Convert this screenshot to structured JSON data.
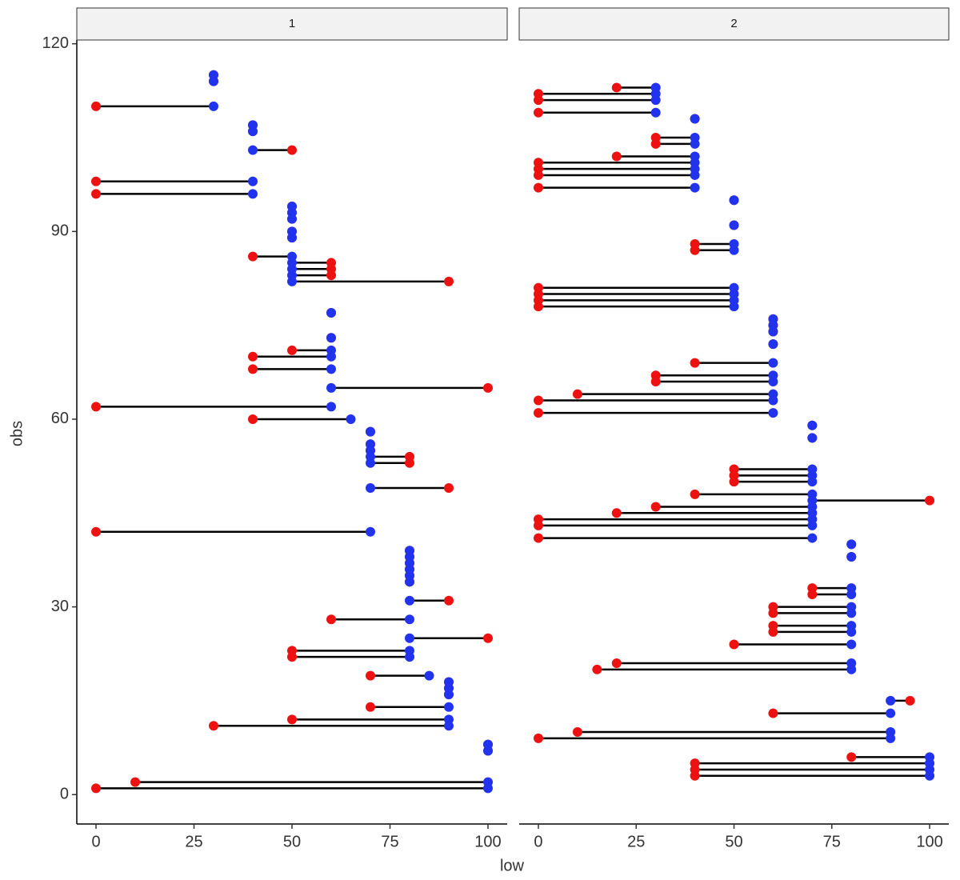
{
  "chart_data": {
    "type": "dumbbell",
    "x_label": "low",
    "y_label": "obs",
    "xlim": [
      -4.9,
      104.9
    ],
    "xticks": [
      0,
      25,
      50,
      75,
      100
    ],
    "ylim": [
      -4.7,
      120.6
    ],
    "yticks": [
      0,
      30,
      60,
      90,
      120
    ],
    "start_color": "#ee1111",
    "end_color": "#2233ee",
    "segment_color": "#000000",
    "facets": [
      {
        "title": "1",
        "y": [
          115,
          114,
          110,
          107,
          106,
          103,
          98,
          96,
          94,
          93,
          92,
          90,
          89,
          86,
          85,
          84,
          83,
          82,
          77,
          73,
          71,
          70,
          68,
          65,
          62,
          60,
          58,
          56,
          55,
          54,
          53,
          49,
          42,
          39,
          38,
          37,
          36,
          35,
          34,
          31,
          28,
          25,
          23,
          22,
          19,
          18,
          17,
          16,
          14,
          12,
          11,
          8,
          7,
          2,
          1
        ],
        "x_start": [
          30,
          30,
          0,
          40,
          40,
          50,
          0,
          0,
          50,
          50,
          50,
          50,
          50,
          40,
          60,
          60,
          60,
          90,
          60,
          60,
          50,
          40,
          40,
          100,
          0,
          40,
          70,
          70,
          70,
          80,
          80,
          90,
          0,
          80,
          80,
          80,
          80,
          80,
          80,
          90,
          60,
          100,
          50,
          50,
          70,
          90,
          90,
          90,
          70,
          50,
          30,
          100,
          100,
          10,
          0
        ],
        "x_end": [
          30,
          30,
          30,
          40,
          40,
          40,
          40,
          40,
          50,
          50,
          50,
          50,
          50,
          50,
          50,
          50,
          50,
          50,
          60,
          60,
          60,
          60,
          60,
          60,
          60,
          65,
          70,
          70,
          70,
          70,
          70,
          70,
          70,
          80,
          80,
          80,
          80,
          80,
          80,
          80,
          80,
          80,
          80,
          80,
          85,
          90,
          90,
          90,
          90,
          90,
          90,
          100,
          100,
          100,
          100
        ]
      },
      {
        "title": "2",
        "y": [
          113,
          112,
          111,
          109,
          108,
          105,
          104,
          102,
          101,
          100,
          99,
          97,
          95,
          91,
          88,
          87,
          81,
          80,
          79,
          78,
          76,
          75,
          74,
          72,
          69,
          67,
          66,
          64,
          63,
          61,
          59,
          57,
          52,
          51,
          50,
          48,
          47,
          46,
          45,
          44,
          43,
          41,
          40,
          38,
          33,
          32,
          30,
          29,
          27,
          26,
          24,
          21,
          20,
          15,
          13,
          10,
          9,
          6,
          5,
          4,
          3
        ],
        "x_start": [
          20,
          0,
          0,
          0,
          40,
          30,
          30,
          20,
          0,
          0,
          0,
          0,
          50,
          50,
          40,
          40,
          0,
          0,
          0,
          0,
          60,
          60,
          60,
          60,
          40,
          30,
          30,
          10,
          0,
          0,
          70,
          70,
          50,
          50,
          50,
          40,
          100,
          30,
          20,
          0,
          0,
          0,
          80,
          80,
          70,
          70,
          60,
          60,
          60,
          60,
          50,
          20,
          15,
          95,
          60,
          10,
          0,
          80,
          40,
          40,
          40
        ],
        "x_end": [
          30,
          30,
          30,
          30,
          40,
          40,
          40,
          40,
          40,
          40,
          40,
          40,
          50,
          50,
          50,
          50,
          50,
          50,
          50,
          50,
          60,
          60,
          60,
          60,
          60,
          60,
          60,
          60,
          60,
          60,
          70,
          70,
          70,
          70,
          70,
          70,
          70,
          70,
          70,
          70,
          70,
          70,
          80,
          80,
          80,
          80,
          80,
          80,
          80,
          80,
          80,
          80,
          80,
          90,
          90,
          90,
          90,
          100,
          100,
          100,
          100
        ]
      }
    ]
  }
}
